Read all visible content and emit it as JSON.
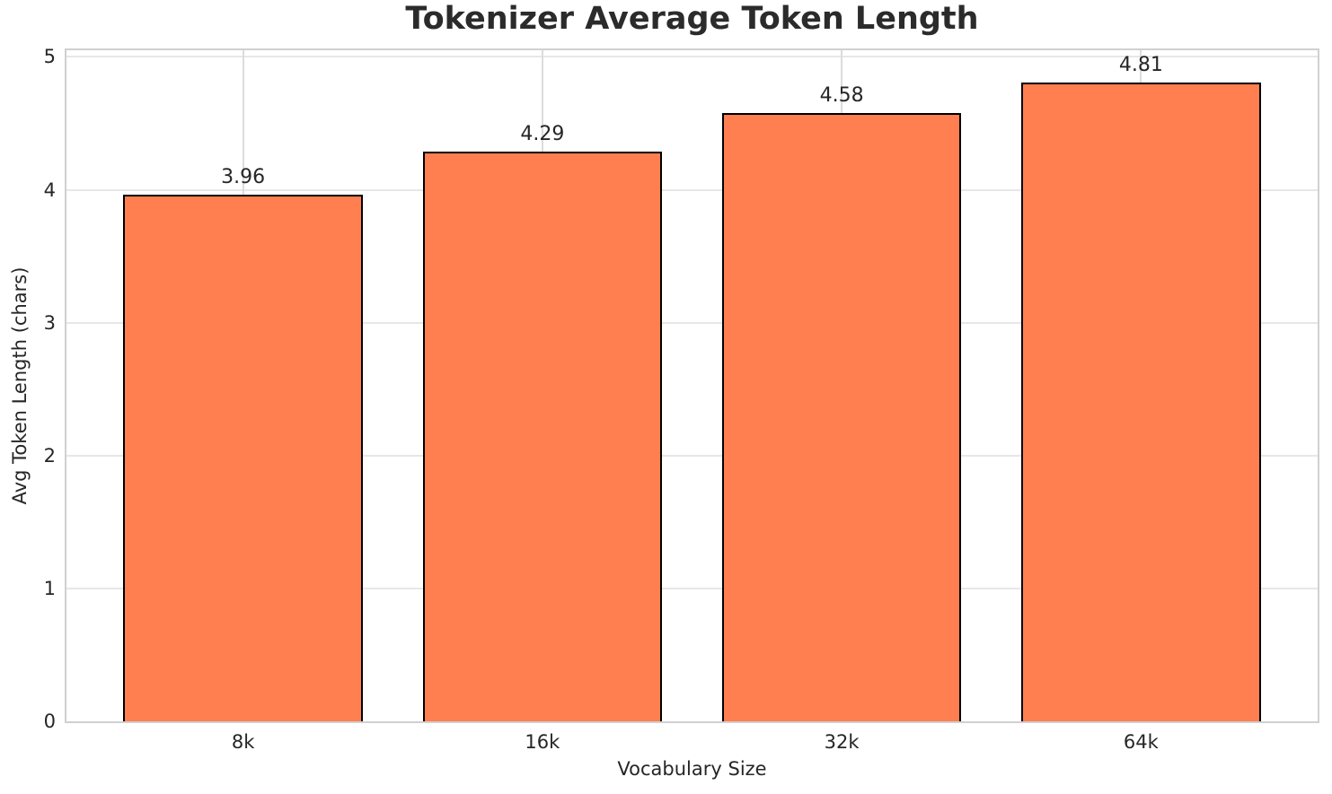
{
  "chart_data": {
    "type": "bar",
    "title": "Tokenizer Average Token Length",
    "xlabel": "Vocabulary Size",
    "ylabel": "Avg Token Length (chars)",
    "categories": [
      "8k",
      "16k",
      "32k",
      "64k"
    ],
    "values": [
      3.96,
      4.29,
      4.58,
      4.81
    ],
    "bar_labels": [
      "3.96",
      "4.29",
      "4.58",
      "4.81"
    ],
    "yticks": [
      0,
      1,
      2,
      3,
      4,
      5
    ],
    "ylim": [
      0,
      5.05
    ],
    "grid": true,
    "legend": false,
    "bar_width_units": 0.8,
    "colors": {
      "bar_fill": "#FF7F50",
      "bar_edge": "#000000",
      "grid_horizontal": "#E7E7E7",
      "grid_vertical": "#DCDCDC",
      "spine": "#D0D0D0",
      "text": "#262626",
      "title_text": "#2B2B2B",
      "background": "#FFFFFF"
    }
  }
}
